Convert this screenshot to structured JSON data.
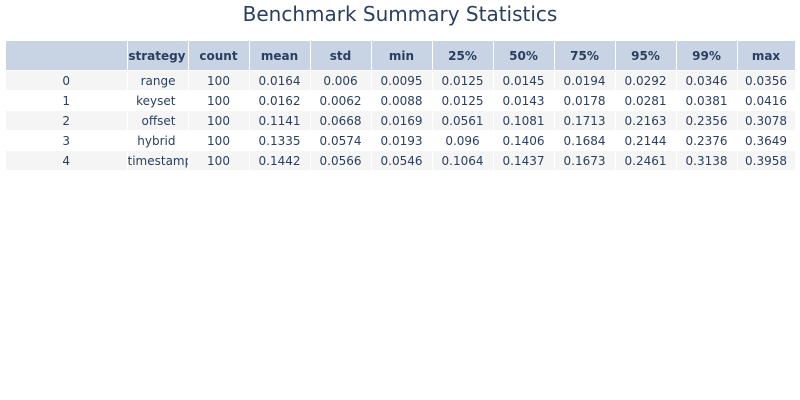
{
  "chart_data": {
    "type": "table",
    "title": "Benchmark Summary Statistics",
    "columns": [
      "",
      "strategy",
      "count",
      "mean",
      "std",
      "min",
      "25%",
      "50%",
      "75%",
      "95%",
      "99%",
      "max"
    ],
    "rows": [
      [
        "0",
        "range",
        "100",
        "0.0164",
        "0.006",
        "0.0095",
        "0.0125",
        "0.0145",
        "0.0194",
        "0.0292",
        "0.0346",
        "0.0356"
      ],
      [
        "1",
        "keyset",
        "100",
        "0.0162",
        "0.0062",
        "0.0088",
        "0.0125",
        "0.0143",
        "0.0178",
        "0.0281",
        "0.0381",
        "0.0416"
      ],
      [
        "2",
        "offset",
        "100",
        "0.1141",
        "0.0668",
        "0.0169",
        "0.0561",
        "0.1081",
        "0.1713",
        "0.2163",
        "0.2356",
        "0.3078"
      ],
      [
        "3",
        "hybrid",
        "100",
        "0.1335",
        "0.0574",
        "0.0193",
        "0.096",
        "0.1406",
        "0.1684",
        "0.2144",
        "0.2376",
        "0.3649"
      ],
      [
        "4",
        "timestamp",
        "100",
        "0.1442",
        "0.0566",
        "0.0546",
        "0.1064",
        "0.1437",
        "0.1673",
        "0.2461",
        "0.3138",
        "0.3958"
      ]
    ],
    "header_color": "#c8d4e3",
    "row_colors": [
      "#f5f5f5",
      "#ffffff"
    ],
    "text_color": "#2a3f5f"
  }
}
